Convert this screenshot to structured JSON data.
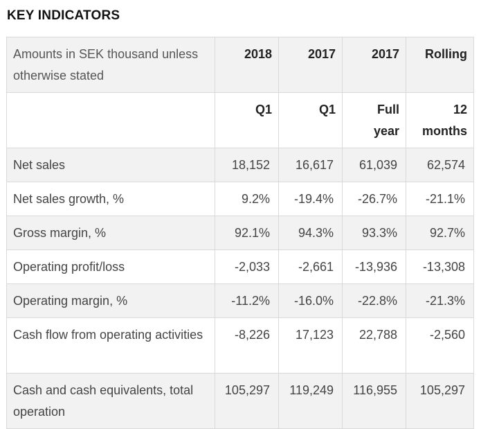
{
  "title": "KEY INDICATORS",
  "header": {
    "label": "Amounts in SEK thousand unless otherwise stated",
    "years": [
      "2018",
      "2017",
      "2017",
      "Rolling"
    ],
    "periods": [
      "Q1",
      "Q1",
      "Full year",
      "12 months"
    ]
  },
  "rows": [
    {
      "label": "Net sales",
      "values": [
        "18,152",
        "16,617",
        "61,039",
        "62,574"
      ]
    },
    {
      "label": "Net sales growth, %",
      "values": [
        "9.2%",
        "-19.4%",
        "-26.7%",
        "-21.1%"
      ]
    },
    {
      "label": "Gross margin, %",
      "values": [
        "92.1%",
        "94.3%",
        "93.3%",
        "92.7%"
      ]
    },
    {
      "label": "Operating profit/loss",
      "values": [
        "-2,033",
        "-2,661",
        "-13,936",
        "-13,308"
      ]
    },
    {
      "label": "Operating margin, %",
      "values": [
        "-11.2%",
        "-16.0%",
        "-22.8%",
        "-21.3%"
      ]
    },
    {
      "label": "Cash flow from operating activities",
      "values": [
        "-8,226",
        "17,123",
        "22,788",
        "-2,560"
      ]
    },
    {
      "label": "Cash and cash equivalents, total operation",
      "values": [
        "105,297",
        "119,249",
        "116,955",
        "105,297"
      ]
    }
  ]
}
